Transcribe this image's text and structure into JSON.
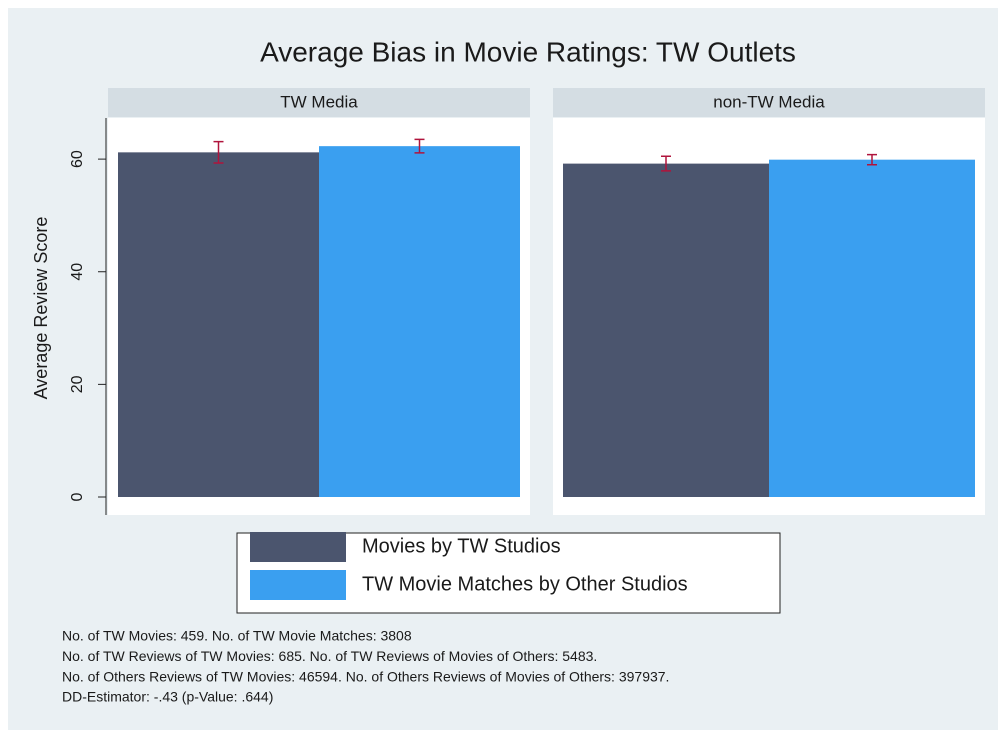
{
  "chart_data": {
    "type": "bar",
    "title": "Average Bias in Movie Ratings: TW Outlets",
    "ylabel": "Average Review Score",
    "panels": [
      "TW Media",
      "non-TW Media"
    ],
    "ylim": [
      0,
      67.3
    ],
    "yticks": [
      0,
      20,
      40,
      60
    ],
    "series": [
      {
        "name": "Movies by TW Studios",
        "color": "#4b556e",
        "values": [
          61.2,
          59.2
        ],
        "errors": [
          1.9,
          1.3
        ]
      },
      {
        "name": "TW Movie Matches by Other Studios",
        "color": "#3a9ff0",
        "values": [
          62.3,
          59.9
        ],
        "errors": [
          1.2,
          0.9
        ]
      }
    ],
    "errorbar_color": "#b0143c"
  },
  "notes": [
    "No. of TW Movies: 459. No. of TW Movie Matches: 3808",
    "No. of TW Reviews of TW Movies: 685. No. of TW Reviews of Movies of Others: 5483.",
    "No. of Others Reviews of TW Movies: 46594. No. of Others Reviews of Movies of Others: 397937.",
    "DD-Estimator: -.43 (p-Value: .644)"
  ]
}
